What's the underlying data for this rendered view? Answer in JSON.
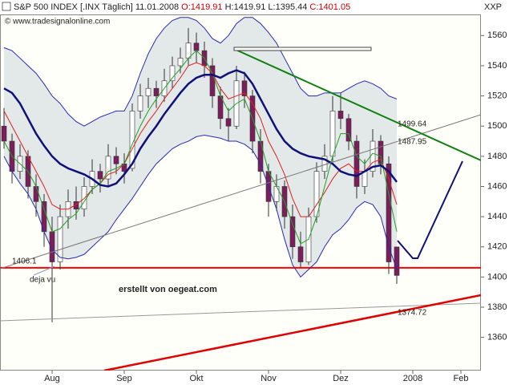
{
  "header": {
    "symbol": "S&P 500 INDEX [.INX  Täglich]",
    "date": "11.01.2008",
    "open": "O:1419.91",
    "high": "H:1419.91",
    "low": "L:1395.44",
    "close": "C:1401.05"
  },
  "annotations": {
    "corner": "XXP",
    "watermark": "© www.tradesignalonline.com",
    "deja_vu": "deja vu",
    "credit": "erstellt von oegeat.com"
  },
  "chart_data": {
    "type": "candlestick",
    "categories": [
      null,
      null,
      null,
      null,
      null,
      null,
      "Aug",
      null,
      null,
      null,
      null,
      null,
      null,
      null,
      null,
      "Sep",
      null,
      null,
      null,
      null,
      null,
      null,
      null,
      null,
      "Okt",
      null,
      null,
      null,
      null,
      null,
      null,
      null,
      null,
      "Nov",
      null,
      null,
      null,
      null,
      null,
      null,
      null,
      null,
      "Dez",
      null,
      null,
      null,
      null,
      null,
      null,
      null,
      null,
      "2008",
      null,
      null,
      null,
      null,
      null,
      "Feb",
      null
    ],
    "open": [
      1500,
      1490,
      1470,
      1480,
      1460,
      1450,
      1430,
      1410,
      1440,
      1450,
      1445,
      1460,
      1470,
      1465,
      1480,
      1475,
      1472,
      1510,
      1520,
      1525,
      1520,
      1530,
      1540,
      1545,
      1555,
      1550,
      1540,
      1520,
      1505,
      1500,
      1530,
      1520,
      1490,
      1470,
      1450,
      1460,
      1440,
      1420,
      1410,
      1440,
      1470,
      1480,
      1510,
      1505,
      1490,
      1460,
      1470,
      1490,
      1475,
      1419.91,
      null,
      null,
      null,
      null,
      null,
      null,
      null,
      null,
      null
    ],
    "high": [
      1512,
      1495,
      1488,
      1484,
      1468,
      1455,
      1440,
      1448,
      1458,
      1460,
      1466,
      1478,
      1475,
      1488,
      1486,
      1482,
      1515,
      1528,
      1532,
      1530,
      1538,
      1546,
      1552,
      1565,
      1562,
      1556,
      1545,
      1526,
      1512,
      1540,
      1536,
      1524,
      1498,
      1475,
      1468,
      1464,
      1448,
      1430,
      1446,
      1476,
      1488,
      1520,
      1522,
      1508,
      1494,
      1478,
      1498,
      1494,
      1480,
      1419.91,
      null,
      null,
      null,
      null,
      null,
      null,
      null,
      null,
      null
    ],
    "low": [
      1485,
      1462,
      1465,
      1452,
      1440,
      1420,
      1370,
      1405,
      1432,
      1438,
      1440,
      1455,
      1456,
      1460,
      1468,
      1462,
      1470,
      1505,
      1512,
      1512,
      1516,
      1525,
      1535,
      1540,
      1542,
      1532,
      1512,
      1498,
      1490,
      1498,
      1512,
      1482,
      1462,
      1440,
      1444,
      1432,
      1412,
      1406,
      1408,
      1436,
      1465,
      1476,
      1498,
      1484,
      1452,
      1455,
      1466,
      1468,
      1402,
      1395.44,
      null,
      null,
      null,
      null,
      null,
      null,
      null,
      null,
      null
    ],
    "close": [
      1490,
      1470,
      1480,
      1460,
      1450,
      1430,
      1410,
      1440,
      1450,
      1445,
      1460,
      1470,
      1465,
      1480,
      1475,
      1470,
      1510,
      1520,
      1525,
      1520,
      1530,
      1540,
      1545,
      1555,
      1550,
      1540,
      1520,
      1505,
      1500,
      1530,
      1520,
      1490,
      1470,
      1450,
      1460,
      1440,
      1420,
      1410,
      1440,
      1470,
      1480,
      1510,
      1505,
      1490,
      1460,
      1470,
      1490,
      1475,
      1410,
      1401.05,
      null,
      null,
      null,
      null,
      null,
      null,
      null,
      null,
      null
    ],
    "up_color": "#ffffff",
    "down_color": "#7a1f5c",
    "band_fill": "#e3e8e8",
    "series": [
      {
        "color": "#10107a",
        "width": 2.5,
        "values": [
          1525,
          1522,
          1515,
          1505,
          1495,
          1487,
          1480,
          1475,
          1472,
          1470,
          1468,
          1465,
          1461,
          1460,
          1462,
          1468,
          1475,
          1485,
          1493,
          1500,
          1508,
          1515,
          1522,
          1528,
          1532,
          1534,
          1534,
          1532,
          1535,
          1537,
          1535,
          1528,
          1518,
          1508,
          1498,
          1490,
          1485,
          1482,
          1480,
          1479,
          1478,
          1475,
          1470,
          1468,
          1467,
          1470,
          1473,
          1474,
          1470,
          1463,
          null,
          null,
          null,
          null,
          null,
          null,
          null,
          null,
          null
        ]
      },
      {
        "color": "#2a2ab0",
        "width": 1,
        "values": [
          1552,
          1550,
          1545,
          1540,
          1535,
          1528,
          1520,
          1515,
          1508,
          1503,
          1500,
          1503,
          1506,
          1508,
          1510,
          1510,
          1520,
          1535,
          1548,
          1558,
          1565,
          1570,
          1572,
          1572,
          1570,
          1565,
          1558,
          1555,
          1560,
          1568,
          1572,
          1572,
          1568,
          1562,
          1555,
          1545,
          1535,
          1525,
          1520,
          1520,
          1522,
          1522,
          1522,
          1525,
          1528,
          1530,
          1528,
          1525,
          1520,
          1518,
          null,
          null,
          null,
          null,
          null,
          null,
          null,
          null,
          null
        ]
      },
      {
        "color": "#2a2ab0",
        "width": 1,
        "values": [
          1480,
          1470,
          1462,
          1455,
          1445,
          1430,
          1418,
          1413,
          1412,
          1413,
          1415,
          1420,
          1425,
          1430,
          1438,
          1445,
          1452,
          1460,
          1468,
          1475,
          1480,
          1485,
          1488,
          1490,
          1493,
          1494,
          1493,
          1492,
          1490,
          1490,
          1488,
          1484,
          1475,
          1460,
          1445,
          1425,
          1408,
          1400,
          1405,
          1410,
          1420,
          1428,
          1432,
          1438,
          1446,
          1450,
          1448,
          1440,
          1420,
          1405,
          null,
          null,
          null,
          null,
          null,
          null,
          null,
          null,
          null
        ]
      },
      {
        "color": "#e02020",
        "width": 1,
        "values": [
          1510,
          1500,
          1490,
          1480,
          1470,
          1460,
          1448,
          1445,
          1445,
          1448,
          1452,
          1458,
          1462,
          1468,
          1470,
          1475,
          1485,
          1495,
          1503,
          1510,
          1518,
          1525,
          1532,
          1540,
          1542,
          1540,
          1535,
          1525,
          1518,
          1520,
          1522,
          1515,
          1505,
          1490,
          1480,
          1468,
          1452,
          1440,
          1440,
          1448,
          1456,
          1465,
          1472,
          1475,
          1470,
          1470,
          1476,
          1478,
          1465,
          1448,
          null,
          null,
          null,
          null,
          null,
          null,
          null,
          null,
          null
        ]
      },
      {
        "color": "#22a022",
        "width": 1,
        "values": [
          1490,
          1480,
          1475,
          1470,
          1460,
          1445,
          1430,
          1432,
          1438,
          1442,
          1450,
          1458,
          1462,
          1470,
          1472,
          1475,
          1488,
          1500,
          1510,
          1518,
          1525,
          1532,
          1538,
          1545,
          1550,
          1545,
          1535,
          1520,
          1510,
          1515,
          1518,
          1505,
          1490,
          1470,
          1460,
          1450,
          1435,
          1422,
          1425,
          1440,
          1460,
          1480,
          1495,
          1495,
          1480,
          1475,
          1482,
          1480,
          1455,
          1430,
          null,
          null,
          null,
          null,
          null,
          null,
          null,
          null,
          null
        ]
      }
    ],
    "levels": [
      {
        "value": 1406.1,
        "color": "#ff0000",
        "line": true
      },
      {
        "value": 1499.64,
        "color": "#108010",
        "line": false
      },
      {
        "value": 1487.95,
        "color": "#555555",
        "line": false
      },
      {
        "value": 1374.72,
        "color": "#cc0000",
        "line": false
      }
    ],
    "ylim": [
      1338,
      1574
    ],
    "yticks": [
      1360,
      1380,
      1400,
      1420,
      1440,
      1460,
      1480,
      1500,
      1520,
      1540,
      1560
    ]
  }
}
